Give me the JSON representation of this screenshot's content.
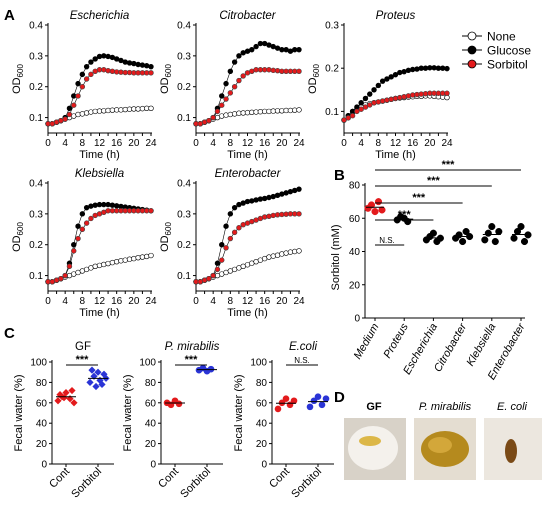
{
  "panel_letters": {
    "A": "A",
    "B": "B",
    "C": "C",
    "D": "D"
  },
  "legend": {
    "entries": [
      {
        "label": "None",
        "fill": "#ffffff"
      },
      {
        "label": "Glucose",
        "fill": "#000000"
      },
      {
        "label": "Sorbitol",
        "fill": "#e31a1c"
      }
    ]
  },
  "colors": {
    "none_fill": "#ffffff",
    "glucose": "#000000",
    "sorbitol": "#e31a1c",
    "blue": "#2a34d6",
    "red": "#e31a1c"
  },
  "growth_axes": {
    "x_label": "Time (h)",
    "y_label": "OD",
    "y_label_sub": "600",
    "x_ticks": [
      "0",
      "2",
      "4",
      "6",
      "8",
      "10",
      "12",
      "14",
      "16",
      "18",
      "20",
      "22",
      "24"
    ]
  },
  "chart_data": [
    {
      "type": "line",
      "title": "Escherichia",
      "xlabel": "Time (h)",
      "ylabel": "OD600",
      "xlim": [
        0,
        24
      ],
      "ylim": [
        0.05,
        0.4
      ],
      "yticks": [
        0.1,
        0.2,
        0.3,
        0.4
      ],
      "x": [
        0,
        1,
        2,
        3,
        4,
        5,
        6,
        7,
        8,
        9,
        10,
        11,
        12,
        13,
        14,
        15,
        16,
        17,
        18,
        19,
        20,
        21,
        22,
        23,
        24
      ],
      "series": [
        {
          "name": "None",
          "values": [
            0.08,
            0.08,
            0.085,
            0.09,
            0.095,
            0.1,
            0.105,
            0.11,
            0.112,
            0.115,
            0.118,
            0.12,
            0.121,
            0.122,
            0.123,
            0.124,
            0.125,
            0.125,
            0.126,
            0.127,
            0.128,
            0.128,
            0.129,
            0.13,
            0.13
          ]
        },
        {
          "name": "Glucose",
          "values": [
            0.08,
            0.08,
            0.085,
            0.09,
            0.1,
            0.13,
            0.17,
            0.21,
            0.24,
            0.265,
            0.28,
            0.29,
            0.298,
            0.3,
            0.298,
            0.295,
            0.29,
            0.285,
            0.28,
            0.277,
            0.275,
            0.272,
            0.27,
            0.268,
            0.265
          ]
        },
        {
          "name": "Sorbitol",
          "values": [
            0.08,
            0.08,
            0.085,
            0.09,
            0.095,
            0.11,
            0.14,
            0.17,
            0.2,
            0.225,
            0.24,
            0.25,
            0.255,
            0.255,
            0.252,
            0.25,
            0.248,
            0.247,
            0.246,
            0.246,
            0.245,
            0.245,
            0.245,
            0.245,
            0.245
          ]
        }
      ]
    },
    {
      "type": "line",
      "title": "Citrobacter",
      "xlabel": "Time (h)",
      "ylabel": "OD600",
      "xlim": [
        0,
        24
      ],
      "ylim": [
        0.05,
        0.4
      ],
      "yticks": [
        0.1,
        0.2,
        0.3,
        0.4
      ],
      "x": [
        0,
        1,
        2,
        3,
        4,
        5,
        6,
        7,
        8,
        9,
        10,
        11,
        12,
        13,
        14,
        15,
        16,
        17,
        18,
        19,
        20,
        21,
        22,
        23,
        24
      ],
      "series": [
        {
          "name": "None",
          "values": [
            0.08,
            0.08,
            0.085,
            0.09,
            0.095,
            0.1,
            0.105,
            0.108,
            0.11,
            0.112,
            0.114,
            0.115,
            0.116,
            0.117,
            0.118,
            0.119,
            0.12,
            0.12,
            0.121,
            0.122,
            0.122,
            0.123,
            0.123,
            0.124,
            0.125
          ]
        },
        {
          "name": "Glucose",
          "values": [
            0.08,
            0.08,
            0.085,
            0.09,
            0.1,
            0.13,
            0.17,
            0.21,
            0.25,
            0.28,
            0.3,
            0.31,
            0.315,
            0.32,
            0.33,
            0.34,
            0.34,
            0.335,
            0.33,
            0.325,
            0.32,
            0.32,
            0.315,
            0.32,
            0.32
          ]
        },
        {
          "name": "Sorbitol",
          "values": [
            0.08,
            0.08,
            0.085,
            0.09,
            0.1,
            0.12,
            0.14,
            0.16,
            0.18,
            0.2,
            0.22,
            0.235,
            0.245,
            0.25,
            0.255,
            0.255,
            0.255,
            0.255,
            0.253,
            0.252,
            0.25,
            0.25,
            0.25,
            0.25,
            0.25
          ]
        }
      ]
    },
    {
      "type": "line",
      "title": "Proteus",
      "xlabel": "Time (h)",
      "ylabel": "OD600",
      "xlim": [
        0,
        24
      ],
      "ylim": [
        0.05,
        0.3
      ],
      "yticks": [
        0.1,
        0.2,
        0.3
      ],
      "x": [
        0,
        1,
        2,
        3,
        4,
        5,
        6,
        7,
        8,
        9,
        10,
        11,
        12,
        13,
        14,
        15,
        16,
        17,
        18,
        19,
        20,
        21,
        22,
        23,
        24
      ],
      "series": [
        {
          "name": "None",
          "values": [
            0.08,
            0.09,
            0.1,
            0.105,
            0.11,
            0.115,
            0.118,
            0.12,
            0.122,
            0.124,
            0.126,
            0.128,
            0.13,
            0.131,
            0.132,
            0.133,
            0.134,
            0.135,
            0.135,
            0.136,
            0.136,
            0.135,
            0.134,
            0.133,
            0.132
          ]
        },
        {
          "name": "Glucose",
          "values": [
            0.08,
            0.09,
            0.1,
            0.11,
            0.12,
            0.13,
            0.14,
            0.15,
            0.16,
            0.17,
            0.175,
            0.18,
            0.185,
            0.19,
            0.192,
            0.195,
            0.197,
            0.198,
            0.2,
            0.2,
            0.201,
            0.201,
            0.2,
            0.2,
            0.199
          ]
        },
        {
          "name": "Sorbitol",
          "values": [
            0.08,
            0.085,
            0.09,
            0.1,
            0.105,
            0.11,
            0.115,
            0.12,
            0.122,
            0.124,
            0.126,
            0.128,
            0.13,
            0.132,
            0.134,
            0.136,
            0.138,
            0.139,
            0.14,
            0.141,
            0.142,
            0.142,
            0.142,
            0.142,
            0.142
          ]
        }
      ]
    },
    {
      "type": "line",
      "title": "Klebsiella",
      "xlabel": "Time (h)",
      "ylabel": "OD600",
      "xlim": [
        0,
        24
      ],
      "ylim": [
        0.05,
        0.4
      ],
      "yticks": [
        0.1,
        0.2,
        0.3,
        0.4
      ],
      "x": [
        0,
        1,
        2,
        3,
        4,
        5,
        6,
        7,
        8,
        9,
        10,
        11,
        12,
        13,
        14,
        15,
        16,
        17,
        18,
        19,
        20,
        21,
        22,
        23,
        24
      ],
      "series": [
        {
          "name": "None",
          "values": [
            0.08,
            0.08,
            0.085,
            0.09,
            0.095,
            0.1,
            0.105,
            0.11,
            0.115,
            0.12,
            0.125,
            0.13,
            0.133,
            0.136,
            0.139,
            0.142,
            0.145,
            0.148,
            0.15,
            0.153,
            0.155,
            0.158,
            0.16,
            0.162,
            0.165
          ]
        },
        {
          "name": "Glucose",
          "values": [
            0.08,
            0.08,
            0.085,
            0.09,
            0.1,
            0.14,
            0.2,
            0.26,
            0.3,
            0.32,
            0.325,
            0.328,
            0.33,
            0.33,
            0.33,
            0.328,
            0.326,
            0.324,
            0.322,
            0.32,
            0.318,
            0.316,
            0.314,
            0.312,
            0.31
          ]
        },
        {
          "name": "Sorbitol",
          "values": [
            0.08,
            0.08,
            0.085,
            0.09,
            0.1,
            0.13,
            0.18,
            0.22,
            0.25,
            0.27,
            0.285,
            0.295,
            0.3,
            0.305,
            0.31,
            0.31,
            0.31,
            0.31,
            0.31,
            0.31,
            0.31,
            0.31,
            0.31,
            0.31,
            0.31
          ]
        }
      ]
    },
    {
      "type": "line",
      "title": "Enterobacter",
      "xlabel": "Time (h)",
      "ylabel": "OD600",
      "xlim": [
        0,
        24
      ],
      "ylim": [
        0.05,
        0.4
      ],
      "yticks": [
        0.1,
        0.2,
        0.3,
        0.4
      ],
      "x": [
        0,
        1,
        2,
        3,
        4,
        5,
        6,
        7,
        8,
        9,
        10,
        11,
        12,
        13,
        14,
        15,
        16,
        17,
        18,
        19,
        20,
        21,
        22,
        23,
        24
      ],
      "series": [
        {
          "name": "None",
          "values": [
            0.08,
            0.08,
            0.085,
            0.09,
            0.095,
            0.1,
            0.105,
            0.11,
            0.115,
            0.12,
            0.125,
            0.13,
            0.135,
            0.14,
            0.145,
            0.15,
            0.155,
            0.16,
            0.163,
            0.166,
            0.17,
            0.173,
            0.176,
            0.178,
            0.18
          ]
        },
        {
          "name": "Glucose",
          "values": [
            0.08,
            0.08,
            0.085,
            0.09,
            0.1,
            0.14,
            0.2,
            0.26,
            0.3,
            0.32,
            0.33,
            0.335,
            0.34,
            0.342,
            0.345,
            0.348,
            0.35,
            0.353,
            0.356,
            0.36,
            0.364,
            0.368,
            0.372,
            0.376,
            0.38
          ]
        },
        {
          "name": "Sorbitol",
          "values": [
            0.08,
            0.08,
            0.085,
            0.09,
            0.1,
            0.12,
            0.15,
            0.19,
            0.22,
            0.24,
            0.255,
            0.265,
            0.27,
            0.275,
            0.28,
            0.285,
            0.29,
            0.292,
            0.295,
            0.297,
            0.298,
            0.299,
            0.3,
            0.3,
            0.3
          ]
        }
      ]
    },
    {
      "type": "scatter",
      "title": "",
      "ylabel": "Sorbitol (mM)",
      "categories": [
        "Medium",
        "Proteus",
        "Escherichia",
        "Citrobacter",
        "Klebsiella",
        "Enterobacter"
      ],
      "ylim": [
        0,
        80
      ],
      "yticks": [
        0,
        20,
        40,
        60,
        80
      ],
      "points": [
        [
          66,
          68,
          64,
          70,
          65
        ],
        [
          59,
          61,
          60,
          58
        ],
        [
          47,
          49,
          51,
          46,
          48
        ],
        [
          48,
          50,
          46,
          52,
          49
        ],
        [
          47,
          51,
          55,
          46,
          52
        ],
        [
          48,
          52,
          55,
          46,
          50
        ]
      ],
      "means": [
        66.6,
        59.5,
        48.2,
        49,
        50.2,
        50.2
      ],
      "colors": [
        "#e31a1c",
        "#000000",
        "#000000",
        "#000000",
        "#000000",
        "#000000"
      ],
      "significance": [
        {
          "from": "Medium",
          "to": "Proteus",
          "label": "N.S."
        },
        {
          "from": "Medium",
          "to": "Escherichia",
          "label": "***"
        },
        {
          "from": "Medium",
          "to": "Citrobacter",
          "label": "***"
        },
        {
          "from": "Medium",
          "to": "Klebsiella",
          "label": "***"
        },
        {
          "from": "Medium",
          "to": "Enterobacter",
          "label": "***"
        }
      ]
    },
    {
      "type": "scatter",
      "title": "GF",
      "ylabel": "Fecal water (%)",
      "categories": [
        "Cont",
        "Sorbitol"
      ],
      "ylim": [
        0,
        100
      ],
      "yticks": [
        0,
        20,
        40,
        60,
        80,
        100
      ],
      "points": [
        [
          62,
          66,
          70,
          64,
          60,
          68,
          72,
          65
        ],
        [
          80,
          86,
          90,
          78,
          84,
          92,
          88,
          76,
          82
        ]
      ],
      "means": [
        65.9,
        84
      ],
      "colors": [
        "#e31a1c",
        "#2a34d6"
      ],
      "marker": "diamond",
      "significance": [
        {
          "from": "Cont",
          "to": "Sorbitol",
          "label": "***"
        }
      ]
    },
    {
      "type": "scatter",
      "title": "P. mirabilis",
      "ylabel": "Fecal water (%)",
      "categories": [
        "Cont",
        "Sorbitol"
      ],
      "ylim": [
        0,
        100
      ],
      "yticks": [
        0,
        20,
        40,
        60,
        80,
        100
      ],
      "points": [
        [
          60,
          58,
          62,
          59
        ],
        [
          92,
          94,
          91,
          93
        ]
      ],
      "means": [
        59.8,
        92.5
      ],
      "colors": [
        "#e31a1c",
        "#2a34d6"
      ],
      "marker": "circle",
      "significance": [
        {
          "from": "Cont",
          "to": "Sorbitol",
          "label": "***"
        }
      ]
    },
    {
      "type": "scatter",
      "title": "E.coli",
      "ylabel": "Fecal water (%)",
      "categories": [
        "Cont",
        "Sorbitol"
      ],
      "ylim": [
        0,
        100
      ],
      "yticks": [
        0,
        20,
        40,
        60,
        80,
        100
      ],
      "points": [
        [
          54,
          60,
          64,
          58,
          62
        ],
        [
          56,
          62,
          66,
          58,
          64
        ]
      ],
      "means": [
        59.6,
        61.2
      ],
      "colors": [
        "#e31a1c",
        "#2a34d6"
      ],
      "marker": "circle",
      "significance": [
        {
          "from": "Cont",
          "to": "Sorbitol",
          "label": "N.S."
        }
      ]
    }
  ],
  "photos": [
    {
      "label": "GF"
    },
    {
      "label": "P. mirabilis"
    },
    {
      "label": "E. coli"
    }
  ]
}
